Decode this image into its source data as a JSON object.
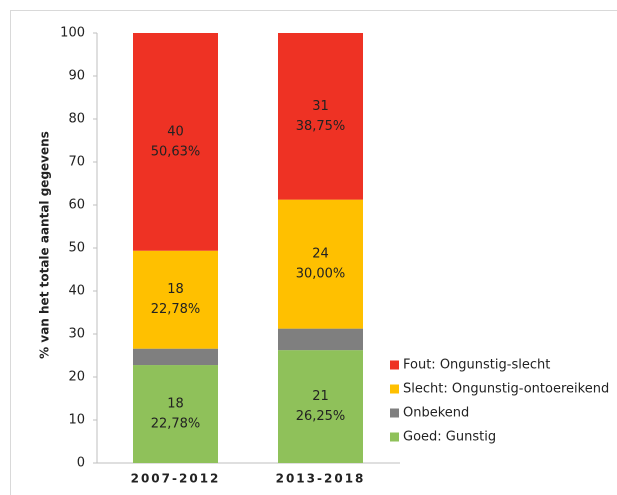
{
  "chart_data": {
    "type": "stacked_bar",
    "y_axis_label": "% van het totale aantal gegevens",
    "categories": [
      "2007-2012",
      "2013-2018"
    ],
    "ylim": [
      0,
      100
    ],
    "yticks": [
      0,
      10,
      20,
      30,
      40,
      50,
      60,
      70,
      80,
      90,
      100
    ],
    "legend": "right",
    "series": [
      {
        "name": "Goed: Gunstig",
        "color": "#8fc15a",
        "values": [
          22.78,
          26.25
        ],
        "counts": [
          18,
          21
        ],
        "value_labels": [
          "22,78%",
          "26,25%"
        ],
        "label_color": "#222222"
      },
      {
        "name": "Onbekend",
        "color": "#7f7f7f",
        "values": [
          3.81,
          5.0
        ]
      },
      {
        "name": "Slecht: Ongunstig-ontoereikend",
        "color": "#ffc000",
        "values": [
          22.78,
          30.0
        ],
        "counts": [
          18,
          24
        ],
        "value_labels": [
          "22,78%",
          "30,00%"
        ],
        "label_color": "#222222"
      },
      {
        "name": "Fout: Ongunstig-slecht",
        "color": "#ee3224",
        "values": [
          50.63,
          38.75
        ],
        "counts": [
          40,
          31
        ],
        "value_labels": [
          "50,63%",
          "38,75%"
        ],
        "label_color": "#ffffff"
      }
    ]
  }
}
